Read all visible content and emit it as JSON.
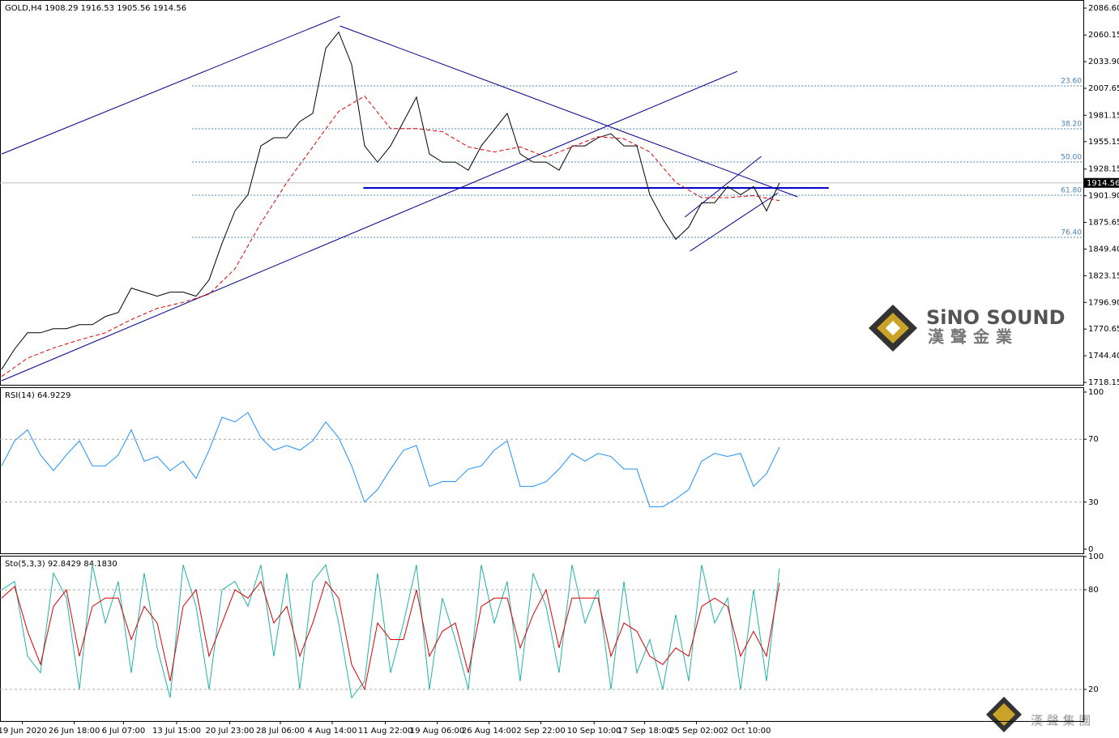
{
  "chart_data": [
    {
      "type": "line",
      "title": "GOLD,H4 1908.29 1916.53 1905.56 1914.56",
      "xlim": [
        -0.125,
        83.44
      ],
      "ylim": [
        1715.8,
        2094.6
      ],
      "yticks": [
        {
          "value": 2086.6,
          "label": "2086.60"
        },
        {
          "value": 2060.15,
          "label": "2060.15"
        },
        {
          "value": 2033.9,
          "label": "2033.90"
        },
        {
          "value": 2007.65,
          "label": "2007.65"
        },
        {
          "value": 1981.15,
          "label": "1981.15"
        },
        {
          "value": 1955.15,
          "label": "1955.15"
        },
        {
          "value": 1928.15,
          "label": "1928.15"
        },
        {
          "value": 1901.9,
          "label": "1901.90"
        },
        {
          "value": 1875.65,
          "label": "1875.65"
        },
        {
          "value": 1849.4,
          "label": "1849.40"
        },
        {
          "value": 1823.15,
          "label": "1823.15"
        },
        {
          "value": 1796.9,
          "label": "1796.90"
        },
        {
          "value": 1770.65,
          "label": "1770.65"
        },
        {
          "value": 1744.4,
          "label": "1744.40"
        },
        {
          "value": 1718.15,
          "label": "1718.15"
        }
      ],
      "last_price": 1914.56,
      "series": [
        {
          "name": "GOLD",
          "color": "#000000",
          "x": [
            0,
            1,
            2,
            3,
            4,
            5,
            6,
            7,
            8,
            9,
            10,
            11,
            12,
            13,
            14,
            15,
            16,
            17,
            18,
            19,
            20,
            21,
            22,
            23,
            24,
            25,
            26,
            27,
            28,
            29,
            30,
            31,
            32,
            33,
            34,
            35,
            36,
            37,
            38,
            39,
            40,
            41,
            42,
            43,
            44,
            45,
            46,
            47,
            48,
            49,
            50,
            51,
            52,
            53,
            54,
            55,
            56,
            57,
            58,
            59,
            60
          ],
          "values": [
            1731,
            1751,
            1767,
            1767,
            1771,
            1771,
            1775,
            1775,
            1783,
            1787,
            1811,
            1807,
            1803,
            1807,
            1807,
            1803,
            1819,
            1855,
            1887,
            1903,
            1951,
            1959,
            1959,
            1975,
            1983,
            2047,
            2063,
            2031,
            1951,
            1935,
            1951,
            1975,
            1999,
            1943,
            1935,
            1935,
            1927,
            1951,
            1967,
            1983,
            1943,
            1935,
            1935,
            1927,
            1951,
            1951,
            1959,
            1963,
            1951,
            1951,
            1903,
            1879,
            1859,
            1871,
            1895,
            1895,
            1911,
            1903,
            1911,
            1887,
            1914.56
          ]
        },
        {
          "name": "MA",
          "color": "#dd0000",
          "dash": true,
          "x": [
            0,
            2,
            4,
            6,
            8,
            10,
            12,
            14,
            16,
            18,
            20,
            22,
            24,
            26,
            28,
            30,
            32,
            34,
            36,
            38,
            40,
            42,
            44,
            46,
            48,
            50,
            52,
            54,
            56,
            58,
            60
          ],
          "values": [
            1724,
            1742,
            1752,
            1760,
            1767,
            1780,
            1791,
            1797,
            1805,
            1830,
            1875,
            1915,
            1950,
            1985,
            2000,
            1968,
            1968,
            1965,
            1950,
            1945,
            1950,
            1940,
            1950,
            1960,
            1958,
            1945,
            1915,
            1900,
            1900,
            1902,
            1897
          ]
        }
      ],
      "trendlines": [
        {
          "x": [
            0,
            26.1
          ],
          "y": [
            1943,
            2078.6
          ],
          "color": "#00008b",
          "width": 1
        },
        {
          "x": [
            0,
            56.75
          ],
          "y": [
            1719.8,
            2024.4
          ],
          "color": "#00008b",
          "width": 1
        },
        {
          "x": [
            26.1,
            61.4
          ],
          "y": [
            2069.1,
            1900.8
          ],
          "color": "#00008b",
          "width": 1
        },
        {
          "x": [
            27.9,
            63.8
          ],
          "y": [
            1909.6,
            1909.6
          ],
          "color": "#0000cc",
          "width": 2
        },
        {
          "x": [
            52.7,
            58.6
          ],
          "y": [
            1880.9,
            1940.7
          ],
          "color": "#00008b",
          "width": 1
        },
        {
          "x": [
            53.1,
            59.9
          ],
          "y": [
            1847.4,
            1904.8
          ],
          "color": "#00008b",
          "width": 1
        }
      ],
      "fib_start": 14.7,
      "fib": [
        {
          "label": "23.60",
          "price": 2010.1
        },
        {
          "label": "38.20",
          "price": 1967.8
        },
        {
          "label": "50.00",
          "price": 1935.1
        },
        {
          "label": "61.80",
          "price": 1902.4
        },
        {
          "label": "76.40",
          "price": 1860.9
        }
      ]
    },
    {
      "type": "line",
      "title": "RSI(14) 64.9229",
      "xlim": [
        -0.125,
        83.44
      ],
      "ylim": [
        -2.6,
        103.1
      ],
      "yticks": [
        100,
        70,
        30,
        0
      ],
      "grid_levels": [
        70,
        30
      ],
      "series": [
        {
          "name": "RSI",
          "color": "#1e90ff",
          "x": [
            0,
            1,
            2,
            3,
            4,
            5,
            6,
            7,
            8,
            9,
            10,
            11,
            12,
            13,
            14,
            15,
            16,
            17,
            18,
            19,
            20,
            21,
            22,
            23,
            24,
            25,
            26,
            27,
            28,
            29,
            30,
            31,
            32,
            33,
            34,
            35,
            36,
            37,
            38,
            39,
            40,
            41,
            42,
            43,
            44,
            45,
            46,
            47,
            48,
            49,
            50,
            51,
            52,
            53,
            54,
            55,
            56,
            57,
            58,
            59,
            60
          ],
          "values": [
            53,
            69,
            76,
            60,
            50,
            60,
            69,
            53,
            53,
            60,
            76,
            56,
            59,
            50,
            56,
            45,
            63,
            84,
            81,
            87,
            71,
            63,
            66,
            63,
            69,
            81,
            71,
            53,
            30,
            38,
            51,
            63,
            66,
            40,
            43,
            43,
            51,
            53,
            63,
            69,
            40,
            40,
            43,
            51,
            61,
            56,
            61,
            59,
            51,
            51,
            27,
            27,
            32,
            38,
            56,
            61,
            59,
            61,
            40,
            48,
            64.9229
          ]
        }
      ]
    },
    {
      "type": "line",
      "title": "Sto(5,3,3) 92.8429 84.1830",
      "xlim": [
        -0.125,
        83.44
      ],
      "ylim": [
        1,
        100.5
      ],
      "yticks": [
        100,
        80,
        20
      ],
      "grid_levels": [
        80,
        20
      ],
      "xticks": [
        {
          "value": 1.6,
          "label": "19 Jun 2020"
        },
        {
          "value": 5.6,
          "label": "26 Jun 18:00"
        },
        {
          "value": 9.4,
          "label": "6 Jul 07:00"
        },
        {
          "value": 13.5,
          "label": "13 Jul 15:00"
        },
        {
          "value": 17.6,
          "label": "20 Jul 23:00"
        },
        {
          "value": 21.5,
          "label": "28 Jul 06:00"
        },
        {
          "value": 25.5,
          "label": "4 Aug 14:00"
        },
        {
          "value": 29.6,
          "label": "11 Aug 22:00"
        },
        {
          "value": 33.6,
          "label": "19 Aug 06:00"
        },
        {
          "value": 37.6,
          "label": "26 Aug 14:00"
        },
        {
          "value": 41.6,
          "label": "2 Sep 22:00"
        },
        {
          "value": 45.7,
          "label": "10 Sep 10:00"
        },
        {
          "value": 49.6,
          "label": "17 Sep 18:00"
        },
        {
          "value": 53.6,
          "label": "25 Sep 02:00"
        },
        {
          "value": 57.5,
          "label": "2 Oct 10:00"
        }
      ],
      "series": [
        {
          "name": "%K",
          "color": "#20b2aa",
          "x": [
            0,
            1,
            2,
            3,
            4,
            5,
            6,
            7,
            8,
            9,
            10,
            11,
            12,
            13,
            14,
            15,
            16,
            17,
            18,
            19,
            20,
            21,
            22,
            23,
            24,
            25,
            26,
            27,
            28,
            29,
            30,
            31,
            32,
            33,
            34,
            35,
            36,
            37,
            38,
            39,
            40,
            41,
            42,
            43,
            44,
            45,
            46,
            47,
            48,
            49,
            50,
            51,
            52,
            53,
            54,
            55,
            56,
            57,
            58,
            59,
            60
          ],
          "values": [
            80,
            85,
            40,
            30,
            90,
            75,
            20,
            95,
            60,
            85,
            30,
            90,
            45,
            15,
            95,
            70,
            20,
            80,
            85,
            70,
            95,
            40,
            90,
            20,
            85,
            95,
            60,
            15,
            25,
            90,
            30,
            60,
            95,
            20,
            75,
            50,
            20,
            95,
            60,
            85,
            25,
            90,
            70,
            30,
            95,
            60,
            80,
            20,
            85,
            30,
            50,
            20,
            65,
            25,
            95,
            60,
            75,
            20,
            80,
            25,
            92.8429
          ]
        },
        {
          "name": "%D",
          "color": "#dd0000",
          "x": [
            0,
            1,
            2,
            3,
            4,
            5,
            6,
            7,
            8,
            9,
            10,
            11,
            12,
            13,
            14,
            15,
            16,
            17,
            18,
            19,
            20,
            21,
            22,
            23,
            24,
            25,
            26,
            27,
            28,
            29,
            30,
            31,
            32,
            33,
            34,
            35,
            36,
            37,
            38,
            39,
            40,
            41,
            42,
            43,
            44,
            45,
            46,
            47,
            48,
            49,
            50,
            51,
            52,
            53,
            54,
            55,
            56,
            57,
            58,
            59,
            60
          ],
          "values": [
            75,
            82,
            55,
            35,
            70,
            80,
            40,
            70,
            75,
            75,
            50,
            70,
            60,
            25,
            70,
            80,
            40,
            60,
            80,
            75,
            85,
            60,
            70,
            40,
            60,
            85,
            75,
            35,
            20,
            60,
            50,
            50,
            80,
            40,
            55,
            60,
            30,
            70,
            75,
            75,
            45,
            65,
            80,
            45,
            75,
            75,
            75,
            40,
            60,
            55,
            40,
            35,
            45,
            40,
            70,
            75,
            70,
            40,
            55,
            40,
            84.183
          ]
        }
      ]
    }
  ],
  "watermark": {
    "brand": "SiNO SOUND",
    "chinese": "漢聲金業",
    "footer": "漢 聲 集 團"
  }
}
